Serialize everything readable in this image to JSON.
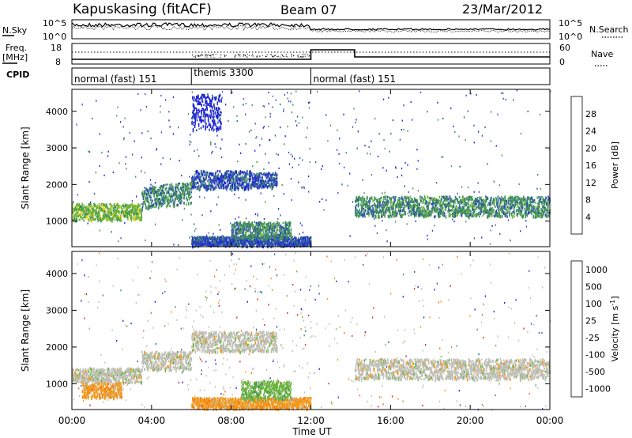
{
  "header": {
    "station": "Kapuskasing (fitACF)",
    "beam": "Beam 07",
    "date": "23/Mar/2012"
  },
  "noise_panel": {
    "left_label": "N.Sky",
    "right_label": "N.Search",
    "left_ticks": [
      "10^5",
      "10^0"
    ],
    "right_ticks": [
      "10^5",
      "10^0"
    ]
  },
  "freq_panel": {
    "left_label_1": "Freq.",
    "left_label_2": "[MHz]",
    "left_ticks": [
      "18",
      "8"
    ],
    "right_label": "Nave",
    "right_ticks": [
      "60",
      "0"
    ]
  },
  "cpid": {
    "label": "CPID",
    "segments": [
      {
        "name": "normal (fast) 151",
        "start": 0,
        "end": 6
      },
      {
        "name": "themis 3300",
        "start": 6,
        "end": 12
      },
      {
        "name": "normal (fast) 151",
        "start": 12,
        "end": 24
      }
    ]
  },
  "chart_data": [
    {
      "type": "heatmap",
      "title": "",
      "ylabel": "Slant Range [km]",
      "xlabel": "",
      "x_range": [
        0,
        24
      ],
      "ylim": [
        300,
        4600
      ],
      "yticks": [
        "1000",
        "2000",
        "3000",
        "4000"
      ],
      "colorbar": {
        "label": "Power [dB]",
        "ticks": [
          "4",
          "8",
          "12",
          "16",
          "20",
          "24",
          "28"
        ],
        "colors": [
          "#1e22d8",
          "#2f4fb0",
          "#3e8e5e",
          "#6ab43c",
          "#e8d21a",
          "#f39a1a",
          "#f36a12",
          "#e02010"
        ]
      },
      "bands": [
        {
          "t0": 0.0,
          "t1": 3.5,
          "r0": 1050,
          "r1": 1500,
          "level": 3
        },
        {
          "t0": 3.5,
          "t1": 6.0,
          "r0": 1350,
          "r1": 1950,
          "level": 2
        },
        {
          "t0": 6.0,
          "t1": 9.0,
          "r0": 1900,
          "r1": 2400,
          "level": 1
        },
        {
          "t0": 9.0,
          "t1": 10.3,
          "r0": 1950,
          "r1": 2350,
          "level": 1
        },
        {
          "t0": 6.0,
          "t1": 12.0,
          "r0": 350,
          "r1": 600,
          "level": 1
        },
        {
          "t0": 8.0,
          "t1": 11.0,
          "r0": 550,
          "r1": 1000,
          "level": 2
        },
        {
          "t0": 6.0,
          "t1": 7.5,
          "r0": 3500,
          "r1": 4500,
          "level": 0
        },
        {
          "t0": 14.2,
          "t1": 24.0,
          "r0": 1150,
          "r1": 1700,
          "level": 2
        }
      ]
    },
    {
      "type": "heatmap",
      "title": "",
      "ylabel": "Slant Range [km]",
      "xlabel": "Time UT",
      "x_range": [
        0,
        24
      ],
      "xticks": [
        "00:00",
        "04:00",
        "08:00",
        "12:00",
        "16:00",
        "20:00",
        "00:00"
      ],
      "ylim": [
        300,
        4600
      ],
      "yticks": [
        "1000",
        "2000",
        "3000",
        "4000"
      ],
      "colorbar": {
        "label": "Velocity [m s",
        "label_superscript": "-1",
        "label_end": "]",
        "ticks": [
          "1000",
          "500",
          "100",
          "25",
          "-25",
          "-100",
          "-500",
          "-1000"
        ],
        "colors": [
          "#1e22d8",
          "#2f4fb0",
          "#3e8e5e",
          "#6ab43c",
          "#bfbfb8",
          "#f39a1a",
          "#f36a12",
          "#e02010"
        ]
      },
      "bands": [
        {
          "t0": 0.0,
          "t1": 3.5,
          "r0": 1050,
          "r1": 1450,
          "level": 4
        },
        {
          "t0": 3.5,
          "t1": 6.0,
          "r0": 1400,
          "r1": 1900,
          "level": 4
        },
        {
          "t0": 6.0,
          "t1": 10.3,
          "r0": 1900,
          "r1": 2450,
          "level": 4
        },
        {
          "t0": 0.5,
          "t1": 2.5,
          "r0": 650,
          "r1": 1050,
          "level": 5
        },
        {
          "t0": 6.0,
          "t1": 12.0,
          "r0": 350,
          "r1": 650,
          "level": 5
        },
        {
          "t0": 8.5,
          "t1": 11.0,
          "r0": 600,
          "r1": 1100,
          "level": 3
        },
        {
          "t0": 14.2,
          "t1": 24.0,
          "r0": 1150,
          "r1": 1700,
          "level": 4
        }
      ]
    }
  ]
}
